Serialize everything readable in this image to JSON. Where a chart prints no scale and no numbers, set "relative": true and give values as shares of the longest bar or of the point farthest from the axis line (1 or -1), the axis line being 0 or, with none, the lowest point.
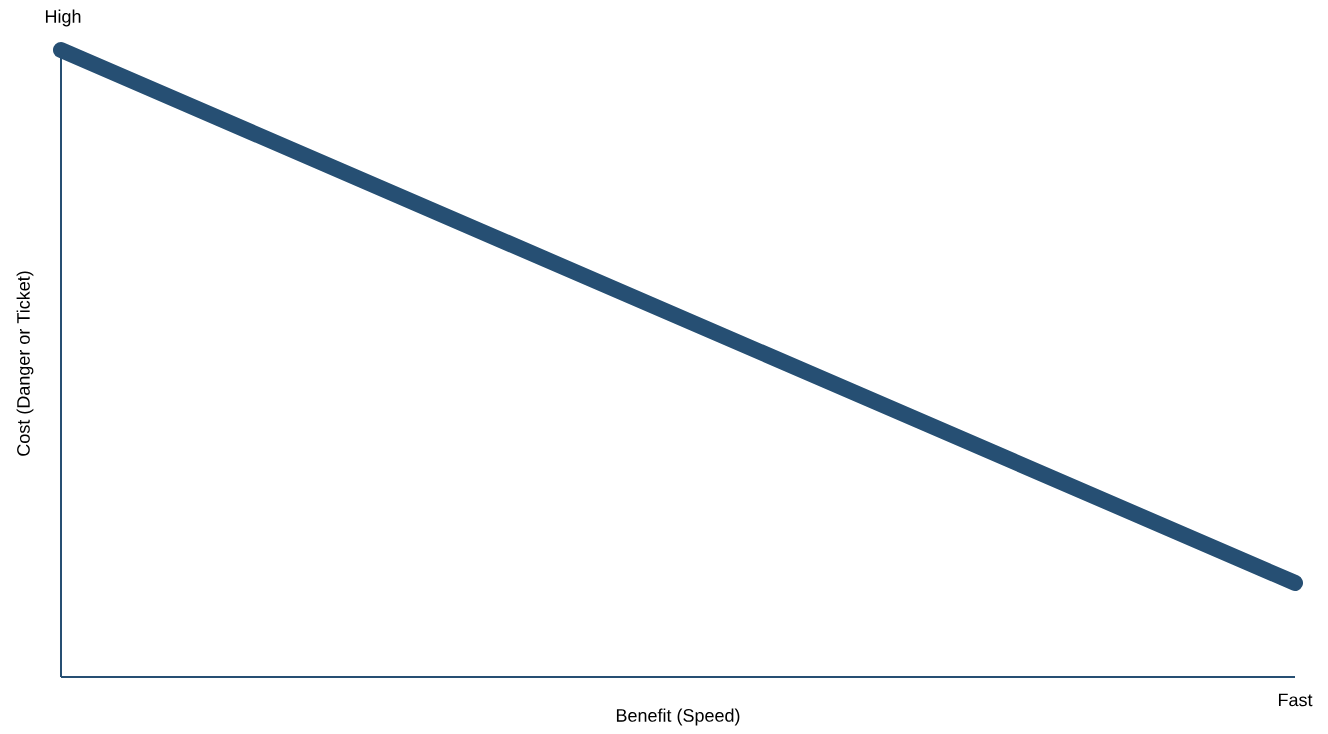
{
  "chart_data": {
    "type": "line",
    "xlabel": "Benefit (Speed)",
    "ylabel": "Cost (Danger or Ticket)",
    "categories": [
      null,
      null
    ],
    "values": [
      1,
      0.15
    ],
    "color": "#264f73",
    "relative": true,
    "annotations": [
      "High",
      "Fast"
    ]
  }
}
